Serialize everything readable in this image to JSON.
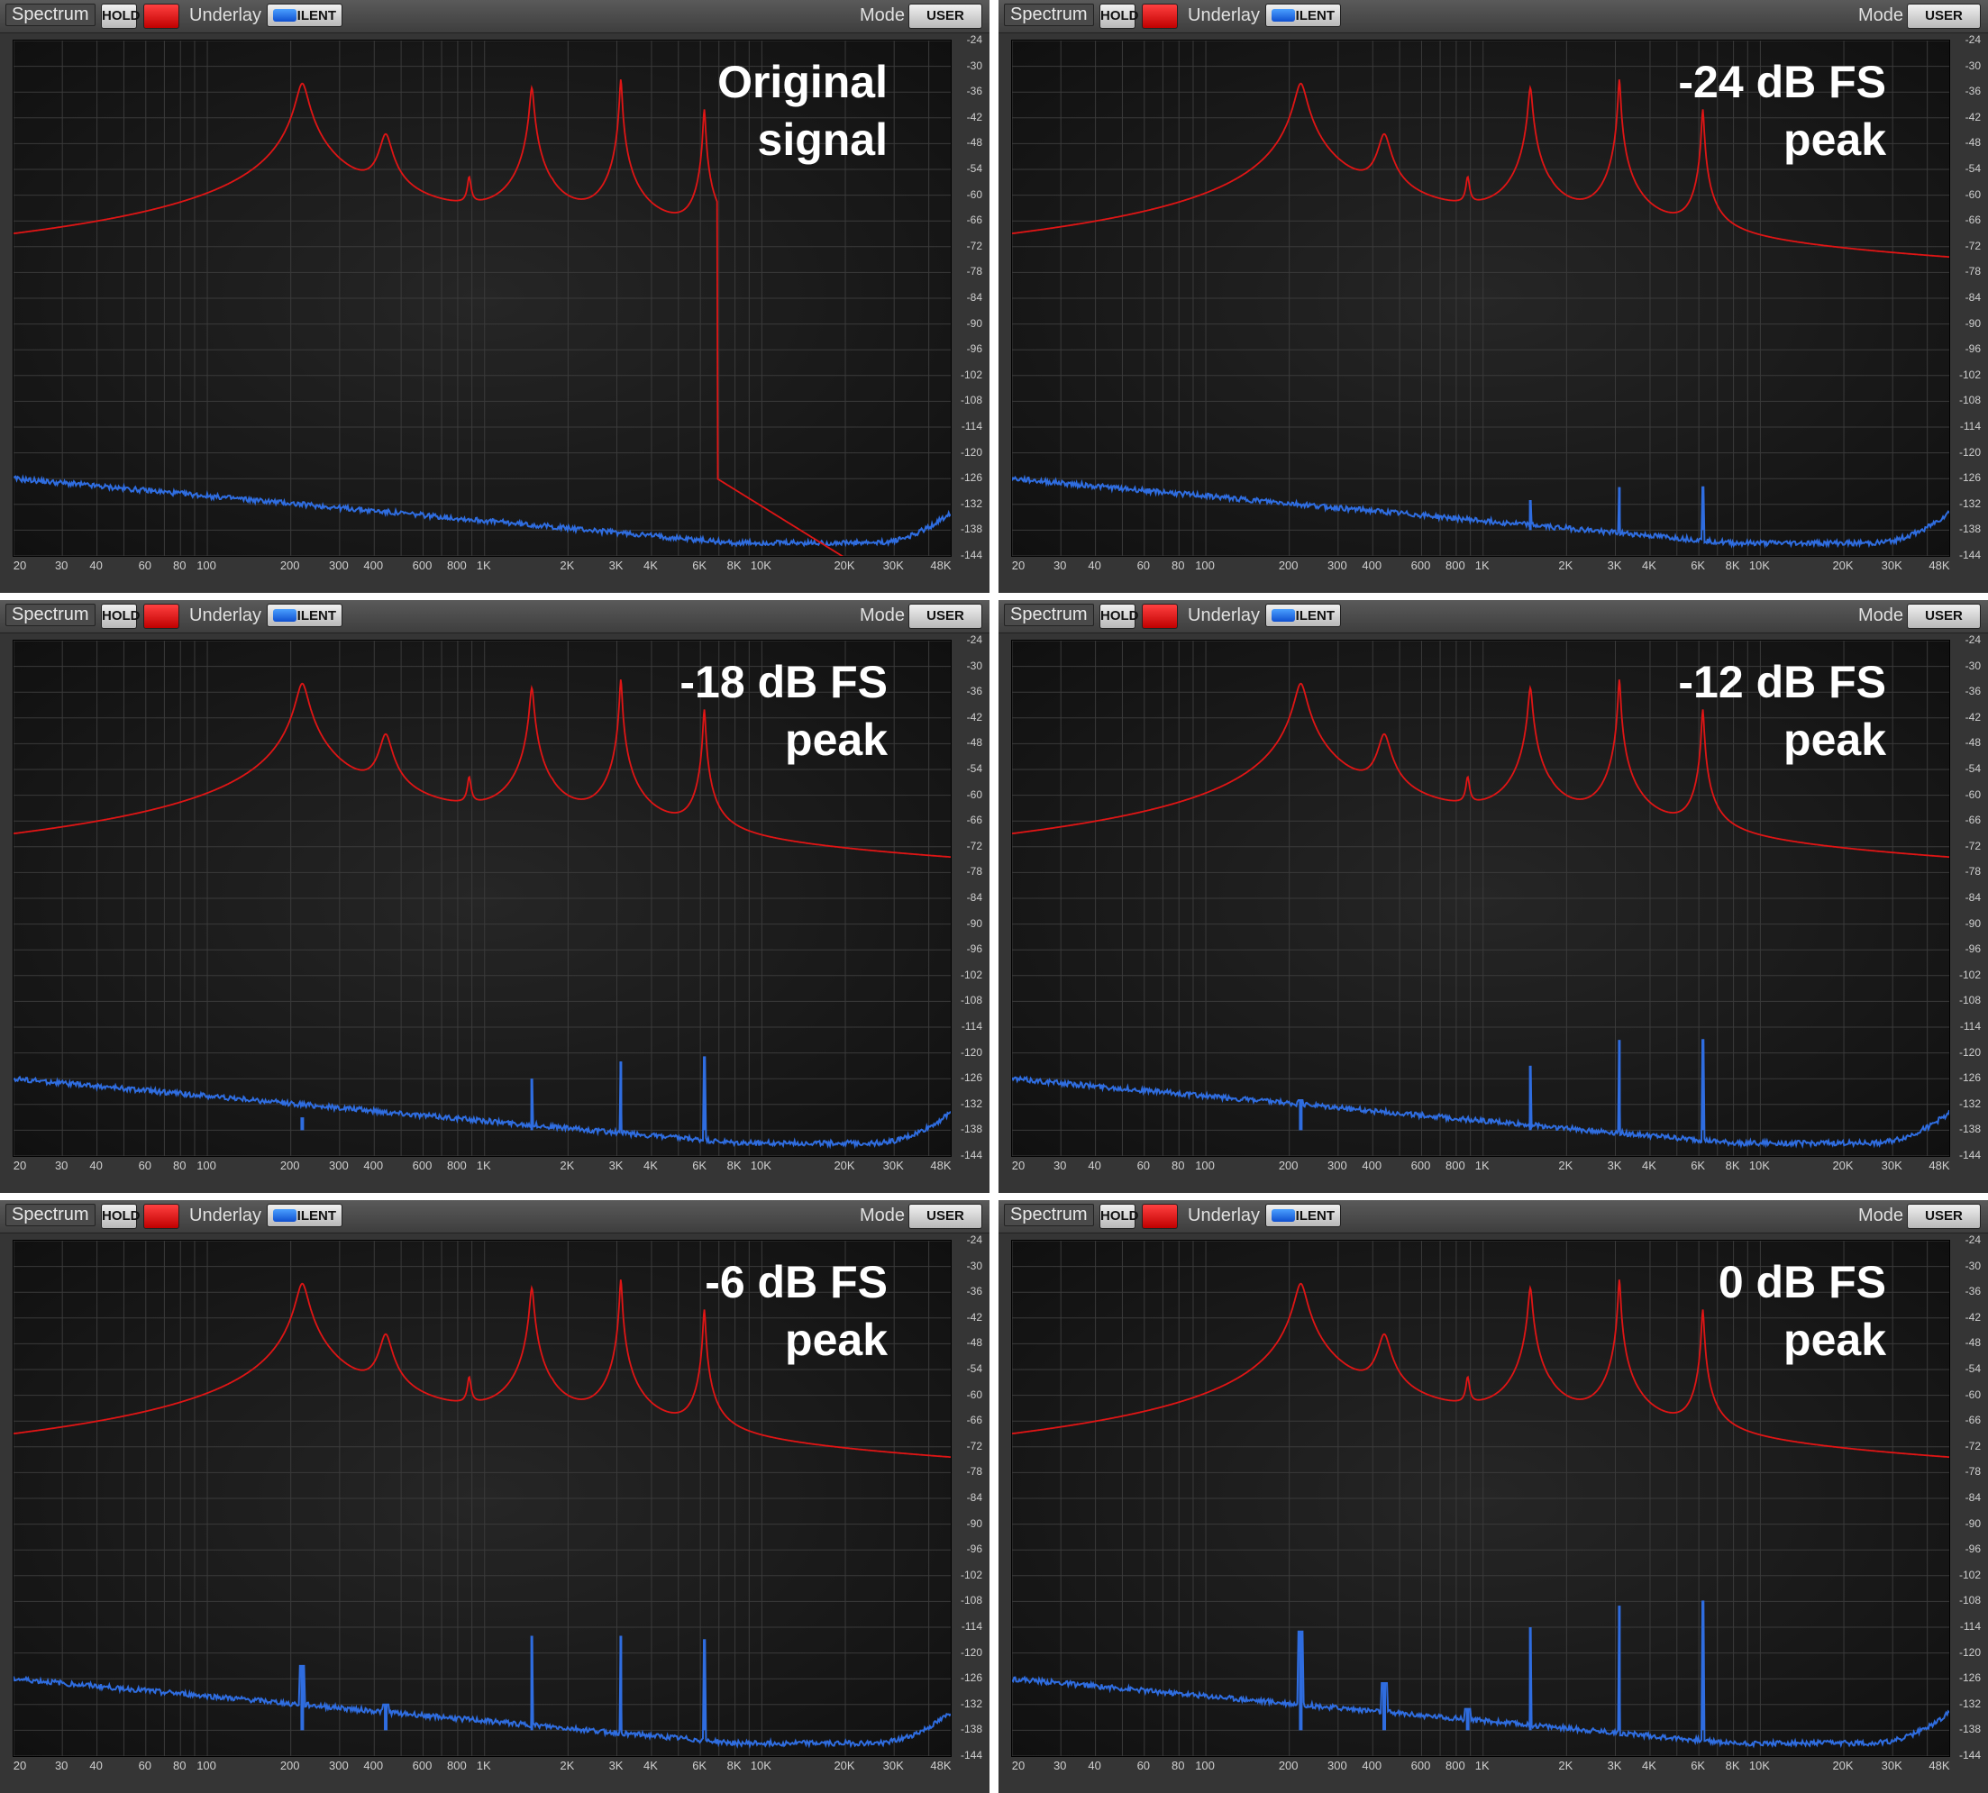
{
  "toolbar": {
    "title": "Spectrum",
    "hold_label": "HOLD",
    "underlay_label": "Underlay",
    "silent_label": "SILENT",
    "mode_label": "Mode",
    "user_label": "USER"
  },
  "colors": {
    "signal": "#e01515",
    "underlay": "#2f6de0",
    "plot_bg": "#161616",
    "grid": "#3a3a3a"
  },
  "panels": [
    {
      "line1": "Original",
      "line2": "signal"
    },
    {
      "line1": "-24 dB FS",
      "line2": "peak"
    },
    {
      "line1": "-18 dB FS",
      "line2": "peak"
    },
    {
      "line1": "-12 dB FS",
      "line2": "peak"
    },
    {
      "line1": "-6 dB FS",
      "line2": "peak"
    },
    {
      "line1": "0 dB FS",
      "line2": "peak"
    }
  ],
  "chart_data": {
    "type": "line",
    "x_scale": "log",
    "xlim": [
      20,
      48000
    ],
    "ylim": [
      -144,
      -24
    ],
    "grid": true,
    "x_ticks": [
      20,
      30,
      40,
      60,
      80,
      100,
      200,
      300,
      400,
      600,
      800,
      1000,
      2000,
      3000,
      4000,
      6000,
      8000,
      10000,
      20000,
      30000,
      48000
    ],
    "x_tick_labels": [
      "20",
      "30",
      "40",
      "60",
      "80",
      "100",
      "200",
      "300",
      "400",
      "600",
      "800",
      "1K",
      "2K",
      "3K",
      "4K",
      "6K",
      "8K",
      "10K",
      "20K",
      "30K",
      "48K"
    ],
    "y_ticks": [
      -24,
      -30,
      -36,
      -42,
      -48,
      -54,
      -60,
      -66,
      -72,
      -78,
      -84,
      -90,
      -96,
      -102,
      -108,
      -114,
      -120,
      -126,
      -132,
      -138,
      -144
    ],
    "signal_peaks": [
      {
        "freq": 220,
        "level": -34
      },
      {
        "freq": 440,
        "level": -46
      },
      {
        "freq": 880,
        "level": -57
      },
      {
        "freq": 1480,
        "level": -35
      },
      {
        "freq": 1760,
        "level": -70
      },
      {
        "freq": 3100,
        "level": -33
      },
      {
        "freq": 3700,
        "level": -78
      },
      {
        "freq": 6200,
        "level": -40
      },
      {
        "freq": 6800,
        "level": -95
      }
    ],
    "signal_floor_low": -110,
    "underlay_floor_start": -126,
    "underlay_floor_end": -141,
    "panel_params": [
      {
        "fold_floor": null,
        "distortion": 0,
        "spurs": []
      },
      {
        "fold_floor": -131,
        "distortion": 0.02,
        "spurs": [
          {
            "freq": 1480,
            "level": -131
          },
          {
            "freq": 3100,
            "level": -128
          },
          {
            "freq": 6200,
            "level": -128
          }
        ]
      },
      {
        "fold_floor": -130,
        "distortion": 0.18,
        "spurs": [
          {
            "freq": 220,
            "level": -135
          },
          {
            "freq": 1480,
            "level": -126
          },
          {
            "freq": 3100,
            "level": -122
          },
          {
            "freq": 6200,
            "level": -121
          }
        ]
      },
      {
        "fold_floor": -124,
        "distortion": 0.45,
        "spurs": [
          {
            "freq": 220,
            "level": -131
          },
          {
            "freq": 440,
            "level": -138
          },
          {
            "freq": 1480,
            "level": -123
          },
          {
            "freq": 3100,
            "level": -117
          },
          {
            "freq": 6200,
            "level": -117
          }
        ]
      },
      {
        "fold_floor": -116,
        "distortion": 0.8,
        "spurs": [
          {
            "freq": 220,
            "level": -123
          },
          {
            "freq": 440,
            "level": -132
          },
          {
            "freq": 880,
            "level": -138
          },
          {
            "freq": 1480,
            "level": -116
          },
          {
            "freq": 3100,
            "level": -116
          },
          {
            "freq": 6200,
            "level": -117
          }
        ]
      },
      {
        "fold_floor": -114,
        "distortion": 1.0,
        "spurs": [
          {
            "freq": 220,
            "level": -115
          },
          {
            "freq": 440,
            "level": -127
          },
          {
            "freq": 880,
            "level": -133
          },
          {
            "freq": 1480,
            "level": -114
          },
          {
            "freq": 3100,
            "level": -109
          },
          {
            "freq": 6200,
            "level": -108
          }
        ]
      }
    ]
  }
}
